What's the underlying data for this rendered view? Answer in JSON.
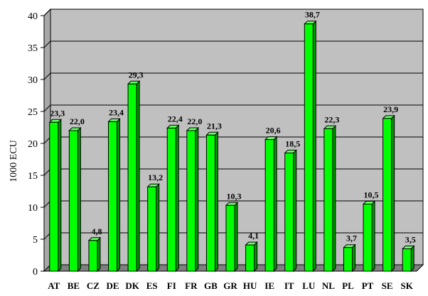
{
  "chart_data": {
    "type": "bar",
    "ylabel": "1000 ECU",
    "ylim": [
      0,
      40
    ],
    "ytick_step": 5,
    "grid": true,
    "legend": "none",
    "colors": {
      "bar_front": "#00ff00",
      "bar_side": "#009900",
      "bar_top": "#66ff66",
      "bar_outline": "#000000",
      "plot_bg": "#c0c0c0",
      "grid": "#000000"
    },
    "categories": [
      "AT",
      "BE",
      "CZ",
      "DE",
      "DK",
      "ES",
      "FI",
      "FR",
      "GB",
      "GR",
      "HU",
      "IE",
      "IT",
      "LU",
      "NL",
      "PL",
      "PT",
      "SE",
      "SK"
    ],
    "values": [
      23.3,
      22.0,
      4.8,
      23.4,
      29.3,
      13.2,
      22.4,
      22.0,
      21.3,
      10.3,
      4.1,
      20.6,
      18.5,
      38.7,
      22.3,
      3.7,
      10.5,
      23.9,
      3.5
    ],
    "data_labels": [
      "23,3",
      "22,0",
      "4,8",
      "23,4",
      "29,3",
      "13,2",
      "22,4",
      "22,0",
      "21,3",
      "10,3",
      "4,1",
      "20,6",
      "18,5",
      "38,7",
      "22,3",
      "3,7",
      "10,5",
      "23,9",
      "3,5"
    ],
    "ytick_labels": [
      "0",
      "5",
      "10",
      "15",
      "20",
      "25",
      "30",
      "35",
      "40"
    ]
  }
}
